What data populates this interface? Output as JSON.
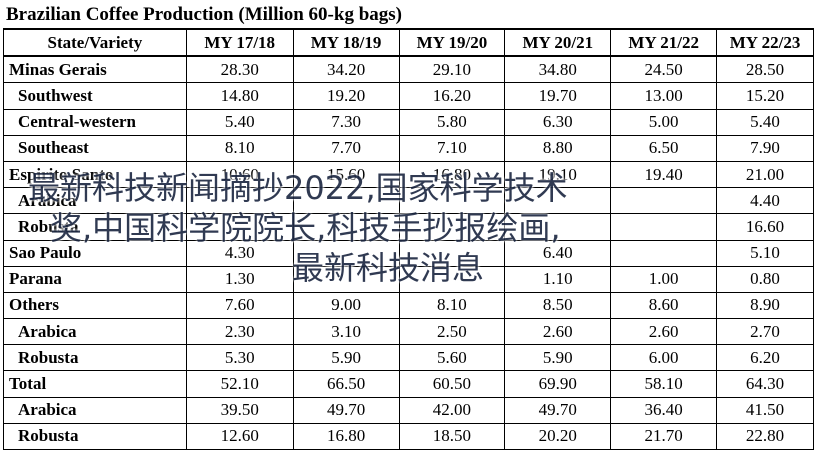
{
  "title": "Brazilian Coffee Production (Million 60-kg bags)",
  "columns": [
    "State/Variety",
    "MY 17/18",
    "MY 18/19",
    "MY 19/20",
    "MY 20/21",
    "MY 21/22",
    "MY 22/23"
  ],
  "rows": [
    {
      "label": "Minas Gerais",
      "sub": false,
      "values": [
        "28.30",
        "34.20",
        "29.10",
        "34.80",
        "24.50",
        "28.50"
      ]
    },
    {
      "label": "Southwest",
      "sub": true,
      "values": [
        "14.80",
        "19.20",
        "16.20",
        "19.70",
        "13.00",
        "15.20"
      ]
    },
    {
      "label": "Central-western",
      "sub": true,
      "values": [
        "5.40",
        "7.30",
        "5.80",
        "6.30",
        "5.00",
        "5.40"
      ]
    },
    {
      "label": "Southeast",
      "sub": true,
      "values": [
        "8.10",
        "7.70",
        "7.10",
        "8.80",
        "6.50",
        "7.90"
      ]
    },
    {
      "label": "Espirito Santo",
      "sub": false,
      "values": [
        "10.60",
        "15.60",
        "16.80",
        "19.10",
        "19.40",
        "21.00"
      ]
    },
    {
      "label": "Arabica",
      "sub": true,
      "values": [
        "",
        "",
        "",
        "",
        "",
        "4.40"
      ]
    },
    {
      "label": "Robusta",
      "sub": true,
      "values": [
        "",
        "",
        "",
        "",
        "",
        "16.60"
      ]
    },
    {
      "label": "Sao Paulo",
      "sub": false,
      "values": [
        "4.30",
        "",
        "",
        "6.40",
        "",
        "5.10"
      ]
    },
    {
      "label": "Parana",
      "sub": false,
      "values": [
        "1.30",
        "",
        "",
        "1.10",
        "1.00",
        "0.80"
      ]
    },
    {
      "label": "Others",
      "sub": false,
      "values": [
        "7.60",
        "9.00",
        "8.10",
        "8.50",
        "8.60",
        "8.90"
      ]
    },
    {
      "label": "Arabica",
      "sub": true,
      "values": [
        "2.30",
        "3.10",
        "2.50",
        "2.60",
        "2.60",
        "2.70"
      ]
    },
    {
      "label": "Robusta",
      "sub": true,
      "values": [
        "5.30",
        "5.90",
        "5.60",
        "5.90",
        "6.00",
        "6.20"
      ]
    },
    {
      "label": "Total",
      "sub": false,
      "values": [
        "52.10",
        "66.50",
        "60.50",
        "69.90",
        "58.10",
        "64.30"
      ]
    },
    {
      "label": "Arabica",
      "sub": true,
      "values": [
        "39.50",
        "49.70",
        "42.00",
        "49.70",
        "36.40",
        "41.50"
      ]
    },
    {
      "label": "Robusta",
      "sub": true,
      "values": [
        "12.60",
        "16.80",
        "18.50",
        "20.20",
        "21.70",
        "22.80"
      ]
    }
  ],
  "overlay": {
    "line1": "最新科技新闻摘抄2022,国家科学技术",
    "line2": "奖,中国科学院院长,科技手抄报绘画,",
    "line3": "最新科技消息"
  }
}
